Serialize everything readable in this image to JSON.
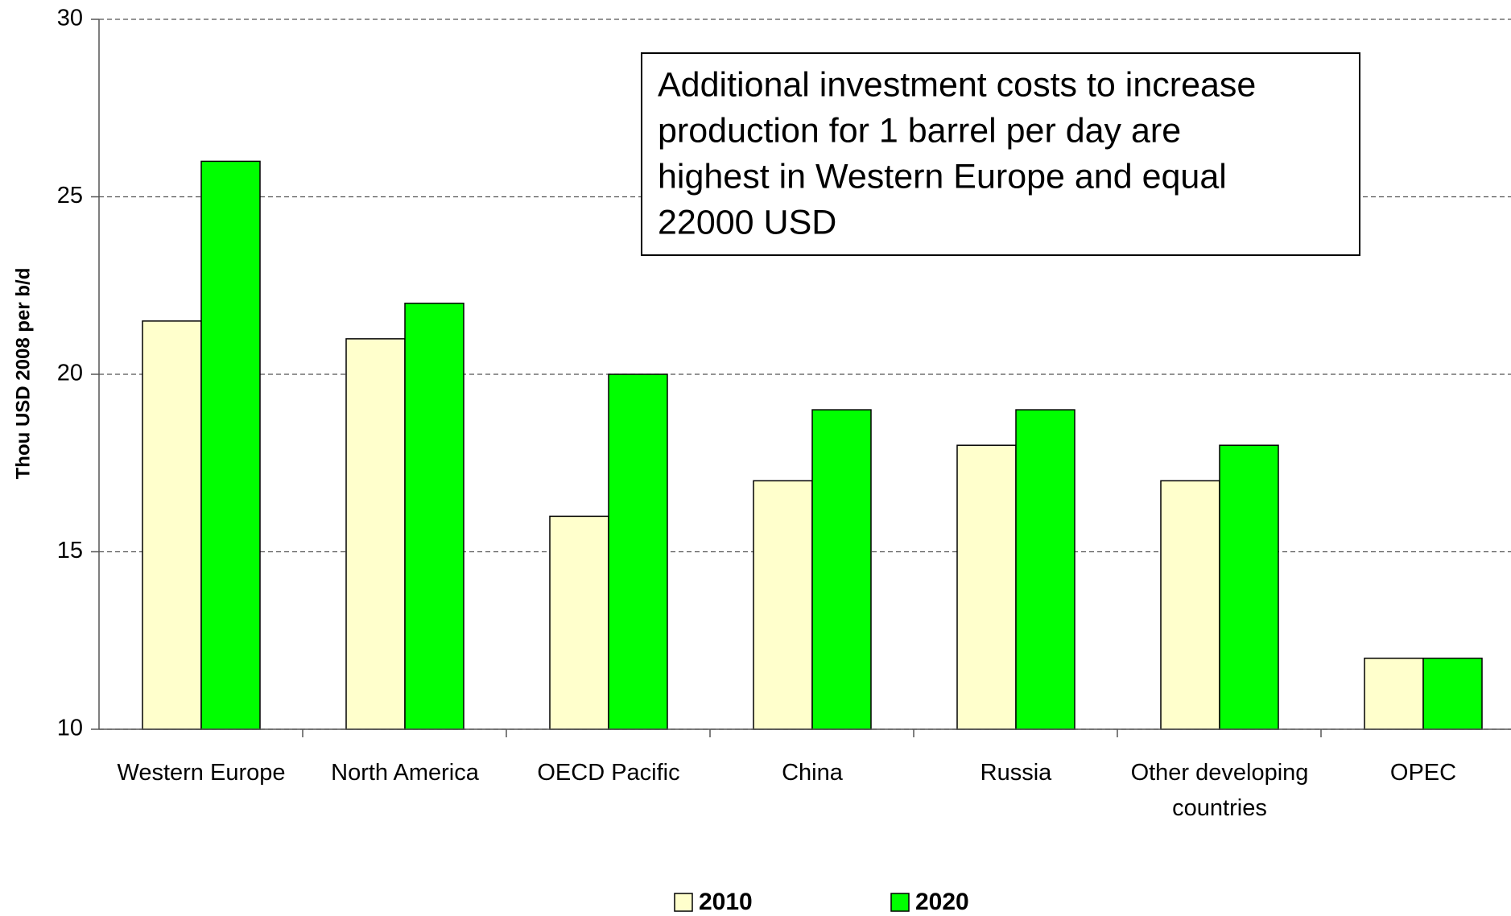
{
  "chart_data": {
    "type": "bar",
    "categories": [
      "Western Europe",
      "North America",
      "OECD Pacific",
      "China",
      "Russia",
      "Other developing countries",
      "OPEC"
    ],
    "series": [
      {
        "name": "2010",
        "color": "#ffffcc",
        "values": [
          21.5,
          21,
          16,
          17,
          18,
          17,
          12
        ]
      },
      {
        "name": "2020",
        "color": "#00ff00",
        "values": [
          26,
          22,
          20,
          19,
          19,
          18,
          12
        ]
      }
    ],
    "ylabel": "Thou USD 2008 per b/d",
    "ylim": [
      10,
      30
    ],
    "yticks": [
      10,
      15,
      20,
      25,
      30
    ],
    "grid": true,
    "legend": "bottom",
    "annotation": [
      "Additional investment costs to increase",
      "production for 1 barrel per day are",
      "highest in Western Europe and equal",
      "22000 USD"
    ]
  }
}
